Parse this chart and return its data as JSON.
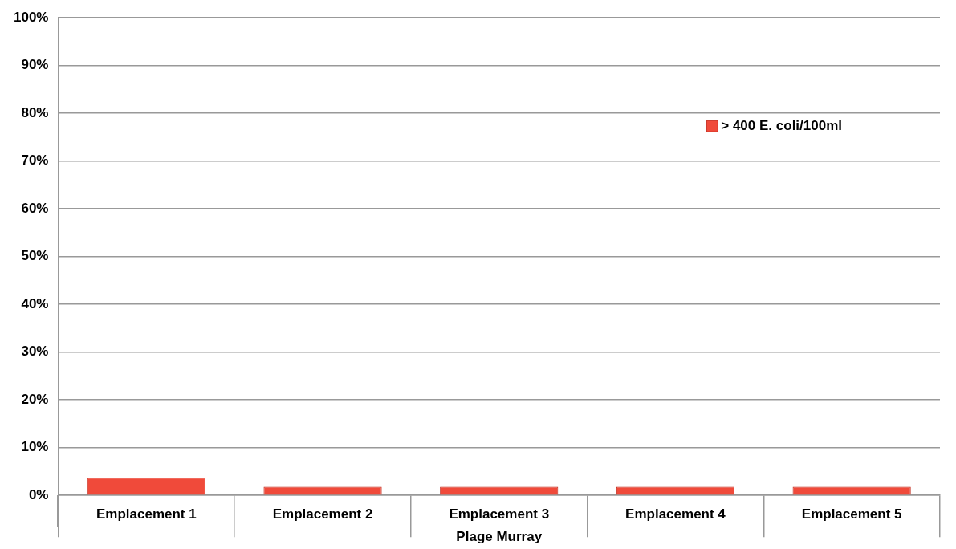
{
  "chart_data": {
    "type": "bar",
    "xlabel": "Plage Murray",
    "categories": [
      "Emplacement 1",
      "Emplacement 2",
      "Emplacement 3",
      "Emplacement 4",
      "Emplacement 5"
    ],
    "series": [
      {
        "name": "> 400 E. coli/100ml",
        "color": "#f04a3a",
        "values": [
          3.7,
          1.8,
          1.8,
          1.8,
          1.8
        ]
      }
    ],
    "ylim": [
      0,
      100
    ],
    "yticks": [
      {
        "value": 0,
        "label": "0%"
      },
      {
        "value": 10,
        "label": "10%"
      },
      {
        "value": 20,
        "label": "20%"
      },
      {
        "value": 30,
        "label": "30%"
      },
      {
        "value": 40,
        "label": "40%"
      },
      {
        "value": 50,
        "label": "50%"
      },
      {
        "value": 60,
        "label": "60%"
      },
      {
        "value": 70,
        "label": "70%"
      },
      {
        "value": 80,
        "label": "80%"
      },
      {
        "value": 90,
        "label": "90%"
      },
      {
        "value": 100,
        "label": "100%"
      }
    ],
    "grid": "y",
    "legend": "top right"
  }
}
